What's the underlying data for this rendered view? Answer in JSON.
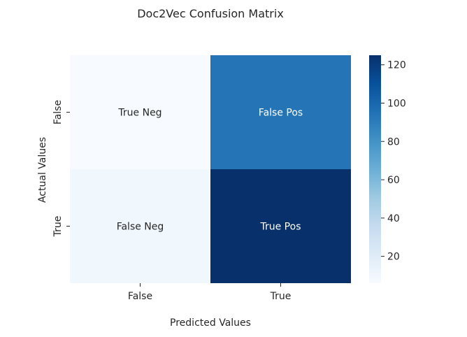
{
  "chart_data": {
    "type": "heatmap",
    "title": "Doc2Vec Confusion Matrix",
    "xlabel": "Predicted Values",
    "ylabel": "Actual Values",
    "x_categories": [
      "False",
      "True"
    ],
    "y_categories": [
      "False",
      "True"
    ],
    "values": [
      [
        6,
        94
      ],
      [
        10,
        125
      ]
    ],
    "annotations": [
      [
        "True Neg",
        "False Pos"
      ],
      [
        "False Neg",
        "True Pos"
      ]
    ],
    "colormap": "Blues",
    "colorbar": {
      "range": [
        6,
        125
      ],
      "ticks": [
        20,
        40,
        60,
        80,
        100,
        120
      ],
      "tick_labels": [
        "20",
        "40",
        "60",
        "80",
        "100",
        "120"
      ]
    },
    "grid": false,
    "legend": "colorbar right"
  }
}
